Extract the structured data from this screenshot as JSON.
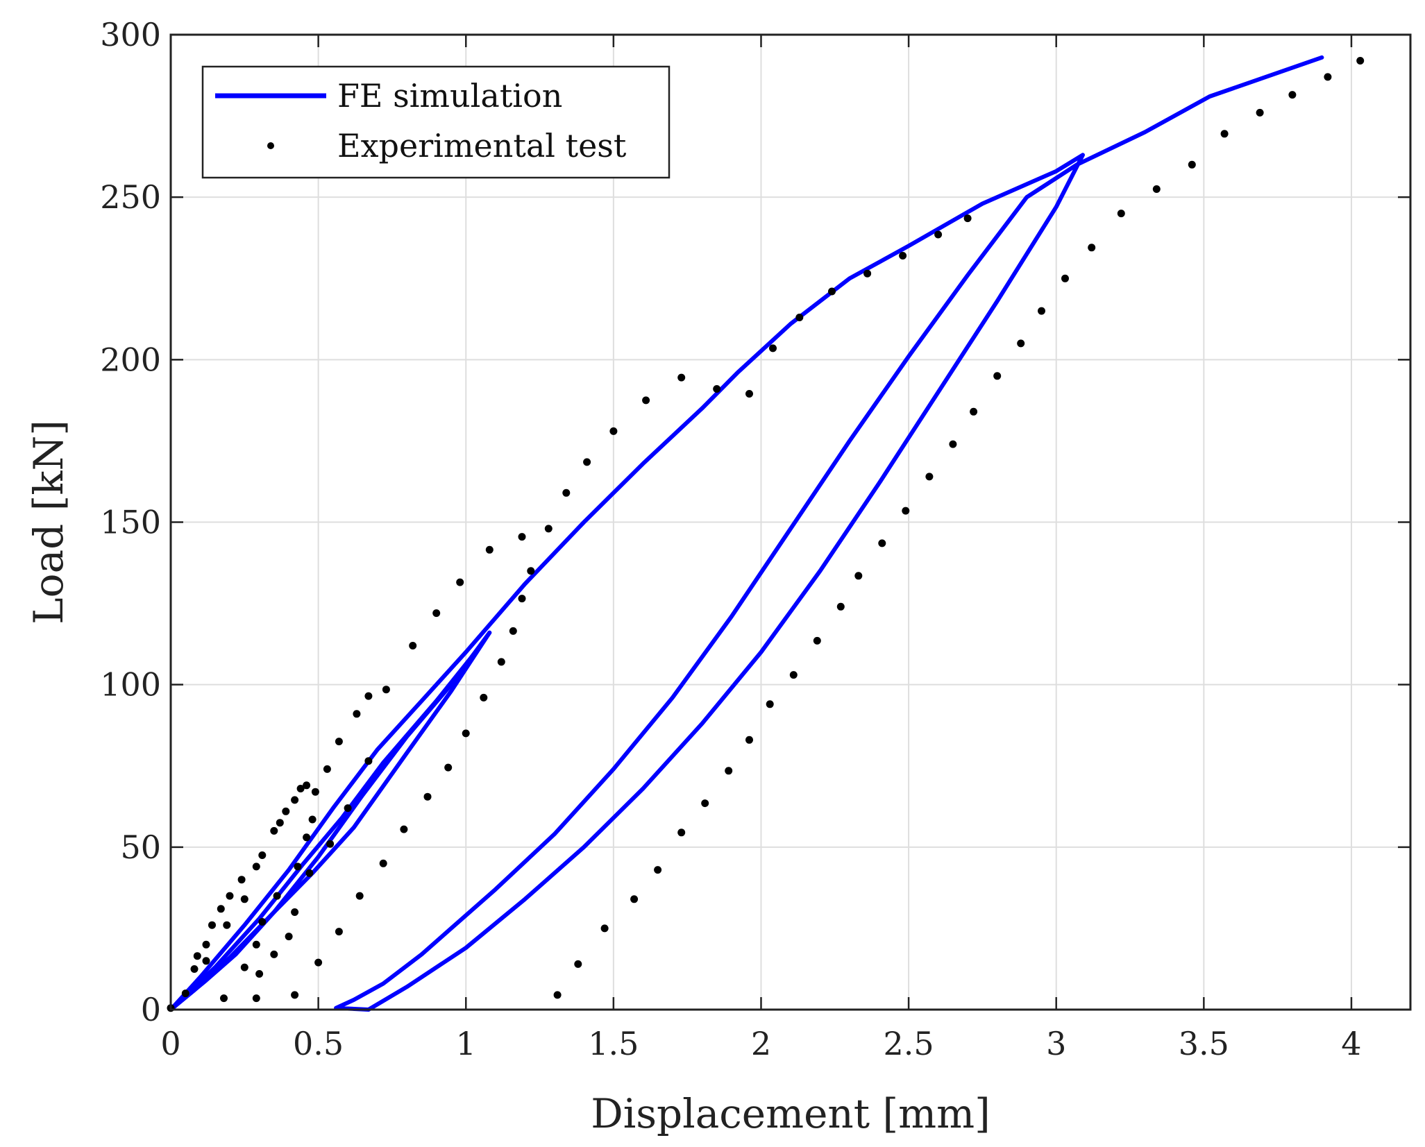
{
  "chart_data": {
    "type": "line",
    "xlabel": "Displacement [mm]",
    "ylabel": "Load [kN]",
    "xlim": [
      0,
      4.2
    ],
    "ylim": [
      0,
      300
    ],
    "xticks": [
      0,
      0.5,
      1,
      1.5,
      2,
      2.5,
      3,
      3.5,
      4
    ],
    "xtick_labels": [
      "0",
      "0.5",
      "1",
      "1.5",
      "2",
      "2.5",
      "3",
      "3.5",
      "4"
    ],
    "yticks": [
      0,
      50,
      100,
      150,
      200,
      250,
      300
    ],
    "ytick_labels": [
      "0",
      "50",
      "100",
      "150",
      "200",
      "250",
      "300"
    ],
    "grid": true,
    "legend_position": "top-left",
    "series": [
      {
        "name": "FE simulation",
        "style": "line",
        "color": "#0000ff",
        "points": [
          [
            0,
            0
          ],
          [
            0.1,
            10
          ],
          [
            0.25,
            26
          ],
          [
            0.4,
            43
          ],
          [
            0.55,
            62
          ],
          [
            0.7,
            80
          ],
          [
            0.85,
            95
          ],
          [
            1.0,
            110
          ],
          [
            1.2,
            131
          ],
          [
            1.4,
            150
          ],
          [
            1.6,
            168
          ],
          [
            1.8,
            185
          ],
          [
            1.92,
            196
          ],
          [
            2.1,
            211
          ],
          [
            2.3,
            225
          ],
          [
            2.5,
            235
          ],
          [
            2.75,
            248
          ],
          [
            3.0,
            258
          ],
          [
            3.09,
            263
          ],
          [
            3.0,
            247
          ],
          [
            2.8,
            218
          ],
          [
            2.6,
            190
          ],
          [
            2.4,
            162
          ],
          [
            2.2,
            135
          ],
          [
            2.0,
            110
          ],
          [
            1.8,
            88
          ],
          [
            1.6,
            68
          ],
          [
            1.4,
            50
          ],
          [
            1.2,
            34
          ],
          [
            1.0,
            19
          ],
          [
            0.8,
            7
          ],
          [
            0.67,
            0
          ],
          [
            0.56,
            0.5
          ],
          [
            0.62,
            3
          ],
          [
            0.72,
            8
          ],
          [
            0.85,
            17
          ],
          [
            0.95,
            25
          ],
          [
            1.1,
            37
          ],
          [
            1.3,
            54
          ],
          [
            1.5,
            74
          ],
          [
            1.7,
            96
          ],
          [
            1.9,
            121
          ],
          [
            2.1,
            148
          ],
          [
            2.3,
            175
          ],
          [
            2.5,
            201
          ],
          [
            2.7,
            226
          ],
          [
            2.9,
            250
          ],
          [
            3.07,
            260
          ],
          [
            3.3,
            270
          ],
          [
            3.52,
            281
          ],
          [
            3.9,
            293
          ]
        ],
        "loop_paths": [
          [
            [
              0,
              0
            ],
            [
              0.12,
              9
            ],
            [
              0.22,
              17
            ],
            [
              0.35,
              30
            ],
            [
              0.5,
              47
            ],
            [
              0.65,
              66
            ],
            [
              0.8,
              84
            ],
            [
              0.95,
              100
            ],
            [
              1.08,
              116
            ]
          ],
          [
            [
              1.08,
              116
            ],
            [
              0.95,
              98
            ],
            [
              0.8,
              79
            ],
            [
              0.62,
              56
            ],
            [
              0.48,
              42
            ],
            [
              0.35,
              30
            ],
            [
              0.2,
              16
            ],
            [
              0.08,
              6
            ],
            [
              0,
              0
            ]
          ],
          [
            [
              0,
              0
            ],
            [
              0.15,
              13
            ],
            [
              0.3,
              28
            ],
            [
              0.45,
              45
            ],
            [
              0.58,
              59
            ],
            [
              0.72,
              76
            ],
            [
              0.9,
              95
            ],
            [
              1.05,
              112
            ]
          ]
        ]
      },
      {
        "name": "Experimental test",
        "style": "scatter",
        "color": "#000000",
        "points": [
          [
            0,
            0.5
          ],
          [
            0.05,
            5
          ],
          [
            0.08,
            12.5
          ],
          [
            0.09,
            16.5
          ],
          [
            0.12,
            15
          ],
          [
            0.12,
            20
          ],
          [
            0.14,
            26
          ],
          [
            0.17,
            31
          ],
          [
            0.18,
            3.5
          ],
          [
            0.19,
            26
          ],
          [
            0.2,
            35
          ],
          [
            0.24,
            40
          ],
          [
            0.25,
            34
          ],
          [
            0.25,
            13
          ],
          [
            0.29,
            44
          ],
          [
            0.29,
            3.5
          ],
          [
            0.29,
            20
          ],
          [
            0.3,
            11
          ],
          [
            0.31,
            47.5
          ],
          [
            0.31,
            27
          ],
          [
            0.35,
            55
          ],
          [
            0.35,
            17
          ],
          [
            0.36,
            35
          ],
          [
            0.37,
            57.5
          ],
          [
            0.39,
            61
          ],
          [
            0.4,
            22.5
          ],
          [
            0.42,
            64.5
          ],
          [
            0.42,
            30
          ],
          [
            0.42,
            4.5
          ],
          [
            0.43,
            44
          ],
          [
            0.44,
            68
          ],
          [
            0.46,
            69
          ],
          [
            0.46,
            53
          ],
          [
            0.47,
            42
          ],
          [
            0.48,
            58.5
          ],
          [
            0.49,
            67
          ],
          [
            0.5,
            14.5
          ],
          [
            0.53,
            74
          ],
          [
            0.54,
            51
          ],
          [
            0.57,
            82.5
          ],
          [
            0.57,
            24
          ],
          [
            0.6,
            62
          ],
          [
            0.63,
            91
          ],
          [
            0.64,
            35
          ],
          [
            0.67,
            76.5
          ],
          [
            0.67,
            96.5
          ],
          [
            0.72,
            45
          ],
          [
            0.73,
            98.5
          ],
          [
            0.79,
            55.5
          ],
          [
            0.82,
            112
          ],
          [
            0.87,
            65.5
          ],
          [
            0.9,
            122
          ],
          [
            0.94,
            74.5
          ],
          [
            0.98,
            131.5
          ],
          [
            1.0,
            85
          ],
          [
            1.06,
            96
          ],
          [
            1.08,
            141.5
          ],
          [
            1.12,
            107
          ],
          [
            1.16,
            116.5
          ],
          [
            1.19,
            126.5
          ],
          [
            1.19,
            145.5
          ],
          [
            1.22,
            135
          ],
          [
            1.28,
            148
          ],
          [
            1.31,
            4.5
          ],
          [
            1.34,
            159
          ],
          [
            1.38,
            14
          ],
          [
            1.41,
            168.5
          ],
          [
            1.47,
            25
          ],
          [
            1.5,
            178
          ],
          [
            1.57,
            34
          ],
          [
            1.61,
            187.5
          ],
          [
            1.65,
            43
          ],
          [
            1.73,
            194.5
          ],
          [
            1.73,
            54.5
          ],
          [
            1.81,
            63.5
          ],
          [
            1.85,
            191
          ],
          [
            1.89,
            73.5
          ],
          [
            1.96,
            189.5
          ],
          [
            1.96,
            83
          ],
          [
            2.03,
            94
          ],
          [
            2.04,
            203.5
          ],
          [
            2.11,
            103
          ],
          [
            2.13,
            213
          ],
          [
            2.19,
            113.5
          ],
          [
            2.24,
            221
          ],
          [
            2.27,
            124
          ],
          [
            2.33,
            133.5
          ],
          [
            2.36,
            226.5
          ],
          [
            2.41,
            143.5
          ],
          [
            2.48,
            232
          ],
          [
            2.49,
            153.5
          ],
          [
            2.57,
            164
          ],
          [
            2.6,
            238.5
          ],
          [
            2.65,
            174
          ],
          [
            2.7,
            243.5
          ],
          [
            2.72,
            184
          ],
          [
            2.8,
            195
          ],
          [
            2.88,
            205
          ],
          [
            2.95,
            215
          ],
          [
            3.03,
            225
          ],
          [
            3.12,
            234.5
          ],
          [
            3.22,
            245
          ],
          [
            3.34,
            252.5
          ],
          [
            3.46,
            260
          ],
          [
            3.57,
            269.5
          ],
          [
            3.69,
            276
          ],
          [
            3.8,
            281.5
          ],
          [
            3.92,
            287
          ],
          [
            4.03,
            292
          ]
        ]
      }
    ]
  }
}
